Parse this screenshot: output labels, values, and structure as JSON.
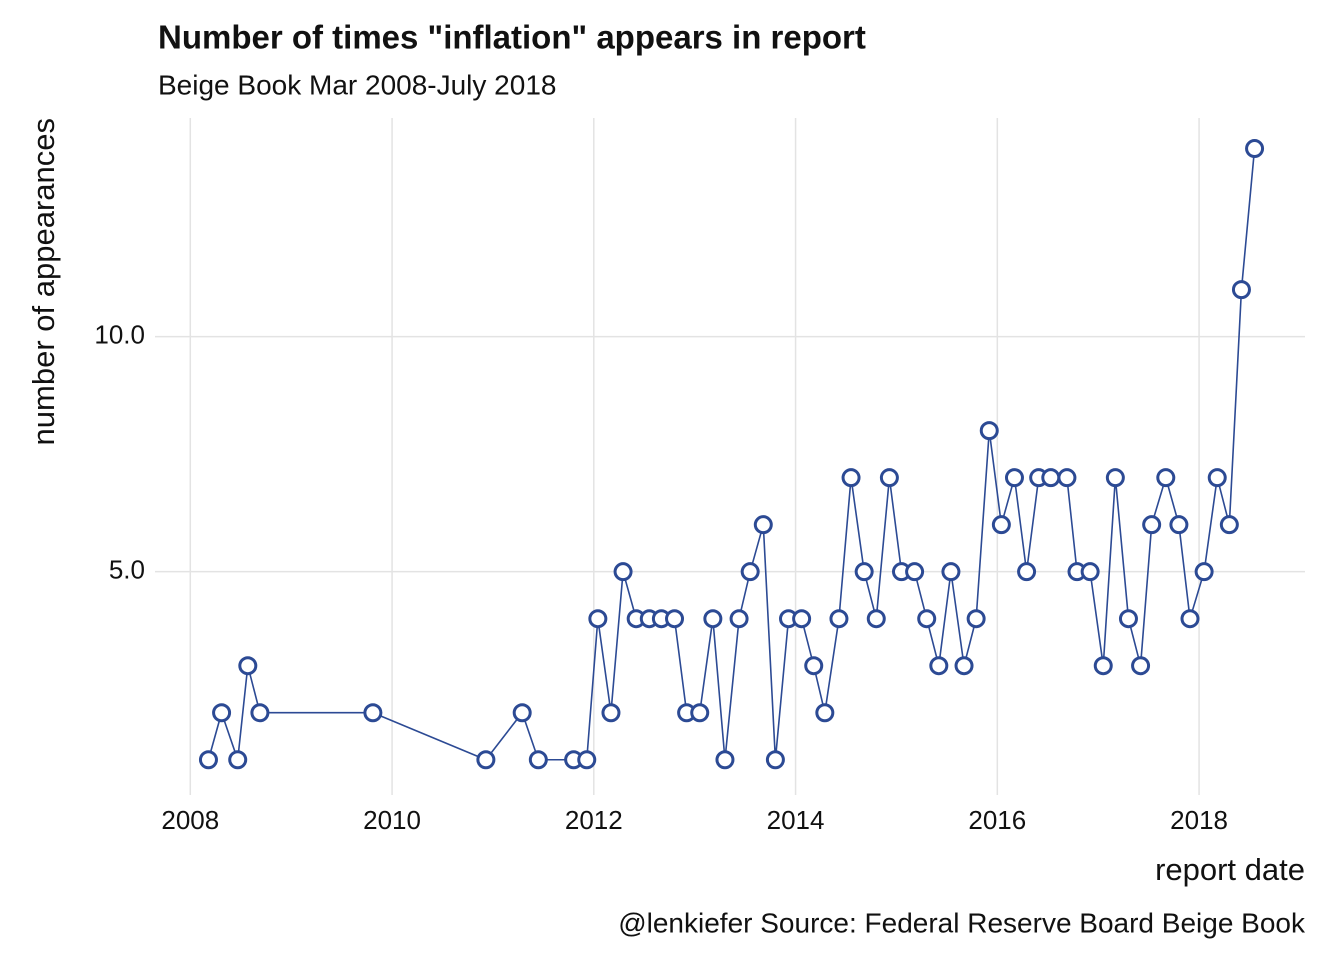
{
  "chart_data": {
    "type": "line",
    "title": "Number of times \"inflation\" appears in report",
    "subtitle": "Beige Book Mar 2008-July 2018",
    "x_label": "report date",
    "y_label": "number of appearances",
    "caption": "@lenkiefer Source: Federal Reserve Board Beige Book",
    "x": [
      2008.18,
      2008.31,
      2008.47,
      2008.57,
      2008.69,
      2009.81,
      2010.93,
      2011.29,
      2011.45,
      2011.8,
      2011.93,
      2012.04,
      2012.17,
      2012.29,
      2012.42,
      2012.55,
      2012.67,
      2012.8,
      2012.92,
      2013.05,
      2013.18,
      2013.3,
      2013.44,
      2013.55,
      2013.68,
      2013.8,
      2013.93,
      2014.06,
      2014.18,
      2014.29,
      2014.43,
      2014.55,
      2014.68,
      2014.8,
      2014.93,
      2015.05,
      2015.18,
      2015.3,
      2015.42,
      2015.54,
      2015.67,
      2015.79,
      2015.92,
      2016.04,
      2016.17,
      2016.29,
      2016.41,
      2016.53,
      2016.69,
      2016.79,
      2016.92,
      2017.05,
      2017.17,
      2017.3,
      2017.42,
      2017.53,
      2017.67,
      2017.8,
      2017.91,
      2018.05,
      2018.18,
      2018.3,
      2018.42,
      2018.55
    ],
    "series": [
      {
        "name": "inflation",
        "color": "#2c4a94",
        "values": [
          1,
          2,
          1,
          3,
          2,
          2,
          1,
          2,
          1,
          1,
          1,
          4,
          2,
          5,
          4,
          4,
          4,
          4,
          2,
          2,
          4,
          1,
          4,
          5,
          6,
          1,
          4,
          4,
          3,
          2,
          4,
          7,
          5,
          4,
          7,
          5,
          5,
          4,
          3,
          5,
          3,
          4,
          8,
          6,
          7,
          5,
          7,
          7,
          7,
          5,
          5,
          3,
          7,
          4,
          3,
          6,
          7,
          6,
          4,
          5,
          7,
          6,
          11,
          14
        ]
      }
    ],
    "xlim": [
      2007.65,
      2019.05
    ],
    "xticks": [
      2008,
      2010,
      2012,
      2014,
      2016,
      2018
    ],
    "ylim": [
      0.25,
      14.65
    ],
    "yticks": [
      {
        "value": 5,
        "label": "5.0"
      },
      {
        "value": 10,
        "label": "10.0"
      }
    ],
    "grid": true
  }
}
